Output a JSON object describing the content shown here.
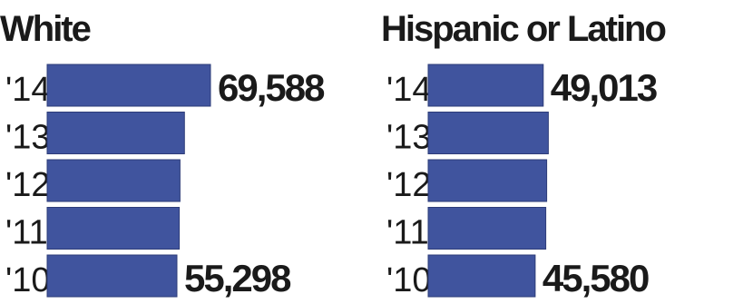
{
  "chart_data": [
    {
      "type": "bar",
      "orientation": "horizontal",
      "title": "White",
      "categories": [
        "'14",
        "'13",
        "'12",
        "'11",
        "'10"
      ],
      "values": [
        69588,
        58500,
        56600,
        56300,
        55298
      ],
      "data_labels": [
        "69,588",
        "",
        "",
        "",
        "55,298"
      ],
      "bar_color": "#40549e"
    },
    {
      "type": "bar",
      "orientation": "horizontal",
      "title": "Hispanic or Latino",
      "categories": [
        "'14",
        "'13",
        "'12",
        "'11",
        "'10"
      ],
      "values": [
        49013,
        51200,
        50500,
        50100,
        45580
      ],
      "data_labels": [
        "49,013",
        "",
        "",
        "",
        "45,580"
      ],
      "bar_color": "#40549e"
    }
  ]
}
